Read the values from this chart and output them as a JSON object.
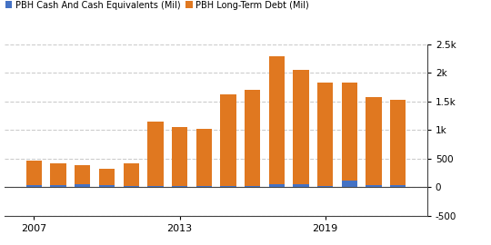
{
  "years": [
    2007,
    2008,
    2009,
    2010,
    2011,
    2012,
    2013,
    2014,
    2015,
    2016,
    2017,
    2018,
    2019,
    2020,
    2021,
    2022
  ],
  "cash": [
    30,
    30,
    45,
    40,
    25,
    25,
    25,
    25,
    25,
    25,
    55,
    45,
    20,
    120,
    40,
    40
  ],
  "debt": [
    460,
    410,
    390,
    320,
    420,
    1150,
    1050,
    1020,
    1620,
    1700,
    2280,
    2050,
    1820,
    1820,
    1580,
    1530
  ],
  "cash_color": "#4472c4",
  "debt_color": "#e07820",
  "background_color": "#ffffff",
  "grid_color": "#cccccc",
  "legend_labels": [
    "PBH Cash And Cash Equivalents (Mil)",
    "PBH Long-Term Debt (Mil)"
  ],
  "xlim": [
    2005.8,
    2023.2
  ],
  "ylim": [
    -500,
    2500
  ],
  "yticks": [
    -500,
    0,
    500,
    1000,
    1500,
    2000,
    2500
  ],
  "ytick_labels": [
    "-500",
    "0",
    "500",
    "1k",
    "1.5k",
    "2k",
    "2.5k"
  ],
  "xtick_positions": [
    2007,
    2013,
    2019
  ],
  "bar_width": 0.65
}
